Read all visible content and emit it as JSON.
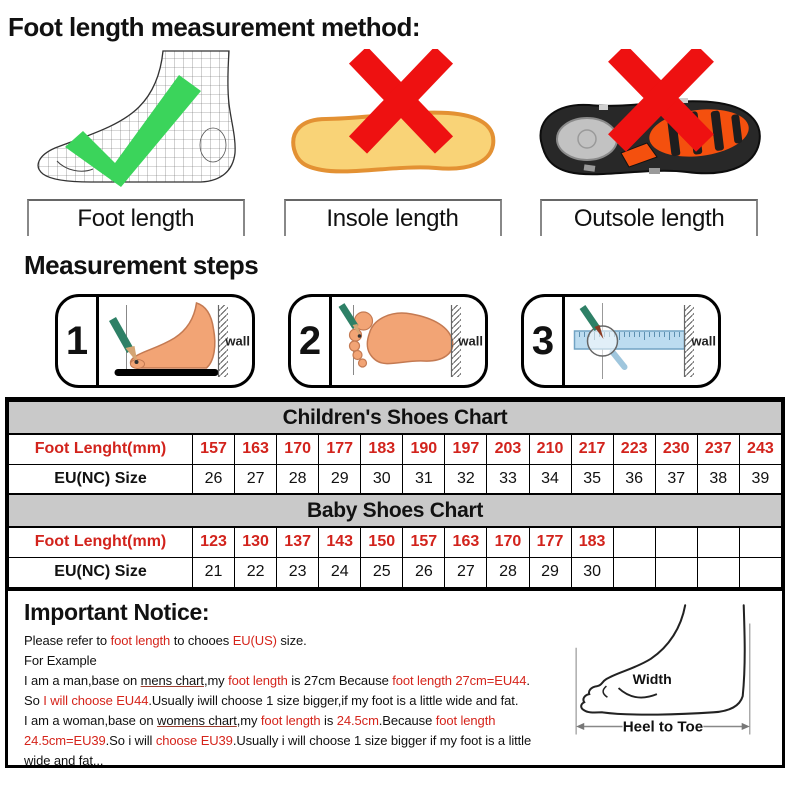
{
  "page": {
    "title": "Foot length measurement method:",
    "steps_title": "Measurement steps"
  },
  "methods": [
    {
      "label": "Foot length",
      "mark": "green-check-icon"
    },
    {
      "label": "Insole length",
      "mark": "red-x-icon"
    },
    {
      "label": "Outsole length",
      "mark": "red-x-icon"
    }
  ],
  "steps": [
    {
      "number": "1",
      "wall_label": "wall"
    },
    {
      "number": "2",
      "wall_label": "wall"
    },
    {
      "number": "3",
      "wall_label": "wall"
    }
  ],
  "size_charts": [
    {
      "title": "Children's Shoes Chart",
      "rows": [
        {
          "label": "Foot Lenght(mm)",
          "style": "red",
          "values": [
            "157",
            "163",
            "170",
            "177",
            "183",
            "190",
            "197",
            "203",
            "210",
            "217",
            "223",
            "230",
            "237",
            "243"
          ]
        },
        {
          "label": "EU(NC) Size",
          "style": "black",
          "values": [
            "26",
            "27",
            "28",
            "29",
            "30",
            "31",
            "32",
            "33",
            "34",
            "35",
            "36",
            "37",
            "38",
            "39"
          ]
        }
      ]
    },
    {
      "title": "Baby Shoes Chart",
      "rows": [
        {
          "label": "Foot Lenght(mm)",
          "style": "red",
          "values": [
            "123",
            "130",
            "137",
            "143",
            "150",
            "157",
            "163",
            "170",
            "177",
            "183",
            "",
            "",
            "",
            ""
          ]
        },
        {
          "label": "EU(NC) Size",
          "style": "black",
          "values": [
            "21",
            "22",
            "23",
            "24",
            "25",
            "26",
            "27",
            "28",
            "29",
            "30",
            "",
            "",
            "",
            ""
          ]
        }
      ]
    }
  ],
  "notice": {
    "heading": "Important Notice:",
    "lines": [
      [
        {
          "t": "Please refer to "
        },
        {
          "t": "foot length",
          "s": "red"
        },
        {
          "t": " to chooes "
        },
        {
          "t": "EU(US)",
          "s": "red"
        },
        {
          "t": " size."
        }
      ],
      [
        {
          "t": "For Example"
        }
      ],
      [
        {
          "t": "I am a man,base on "
        },
        {
          "t": "mens chart",
          "s": "u"
        },
        {
          "t": ",my "
        },
        {
          "t": "foot length",
          "s": "red"
        },
        {
          "t": " is 27cm Because "
        },
        {
          "t": "foot length 27cm=EU44",
          "s": "red"
        },
        {
          "t": "."
        }
      ],
      [
        {
          "t": "So "
        },
        {
          "t": "I will choose EU44",
          "s": "red"
        },
        {
          "t": ".Usually iwill choose 1 size bigger,if my foot is a little wide and fat."
        }
      ],
      [
        {
          "t": "I am a woman,base on "
        },
        {
          "t": "womens chart",
          "s": "u"
        },
        {
          "t": ",my "
        },
        {
          "t": "foot length",
          "s": "red"
        },
        {
          "t": " is "
        },
        {
          "t": "24.5cm",
          "s": "red"
        },
        {
          "t": ".Because "
        },
        {
          "t": "foot length",
          "s": "red"
        }
      ],
      [
        {
          "t": "24.5cm=EU39",
          "s": "red"
        },
        {
          "t": ".So i will "
        },
        {
          "t": "choose EU39",
          "s": "red"
        },
        {
          "t": ".Usually i will choose 1 size bigger if my foot is a little"
        }
      ],
      [
        {
          "t": "wide and fat..."
        }
      ]
    ],
    "foot_diagram": {
      "width_label": "Width",
      "heel_to_toe_label": "Heel to Toe"
    }
  },
  "icons": {
    "green_check": "green-check-icon",
    "red_x": "red-x-icon",
    "pencil": "pencil-icon",
    "ruler": "ruler-icon",
    "magnifier": "magnifier-icon",
    "wall": "wall-hatch"
  },
  "colors": {
    "red_text": "#d2231c",
    "red_x": "#ee1111",
    "green_check": "#3bd45b",
    "table_header_bg": "#c9c9c9",
    "insole_fill": "#f9d377",
    "insole_edge": "#e39133",
    "skin": "#f2a475",
    "outsole_orange": "#f4500e",
    "ruler_fill": "#bcdcf0",
    "pencil_green": "#2e8066"
  }
}
